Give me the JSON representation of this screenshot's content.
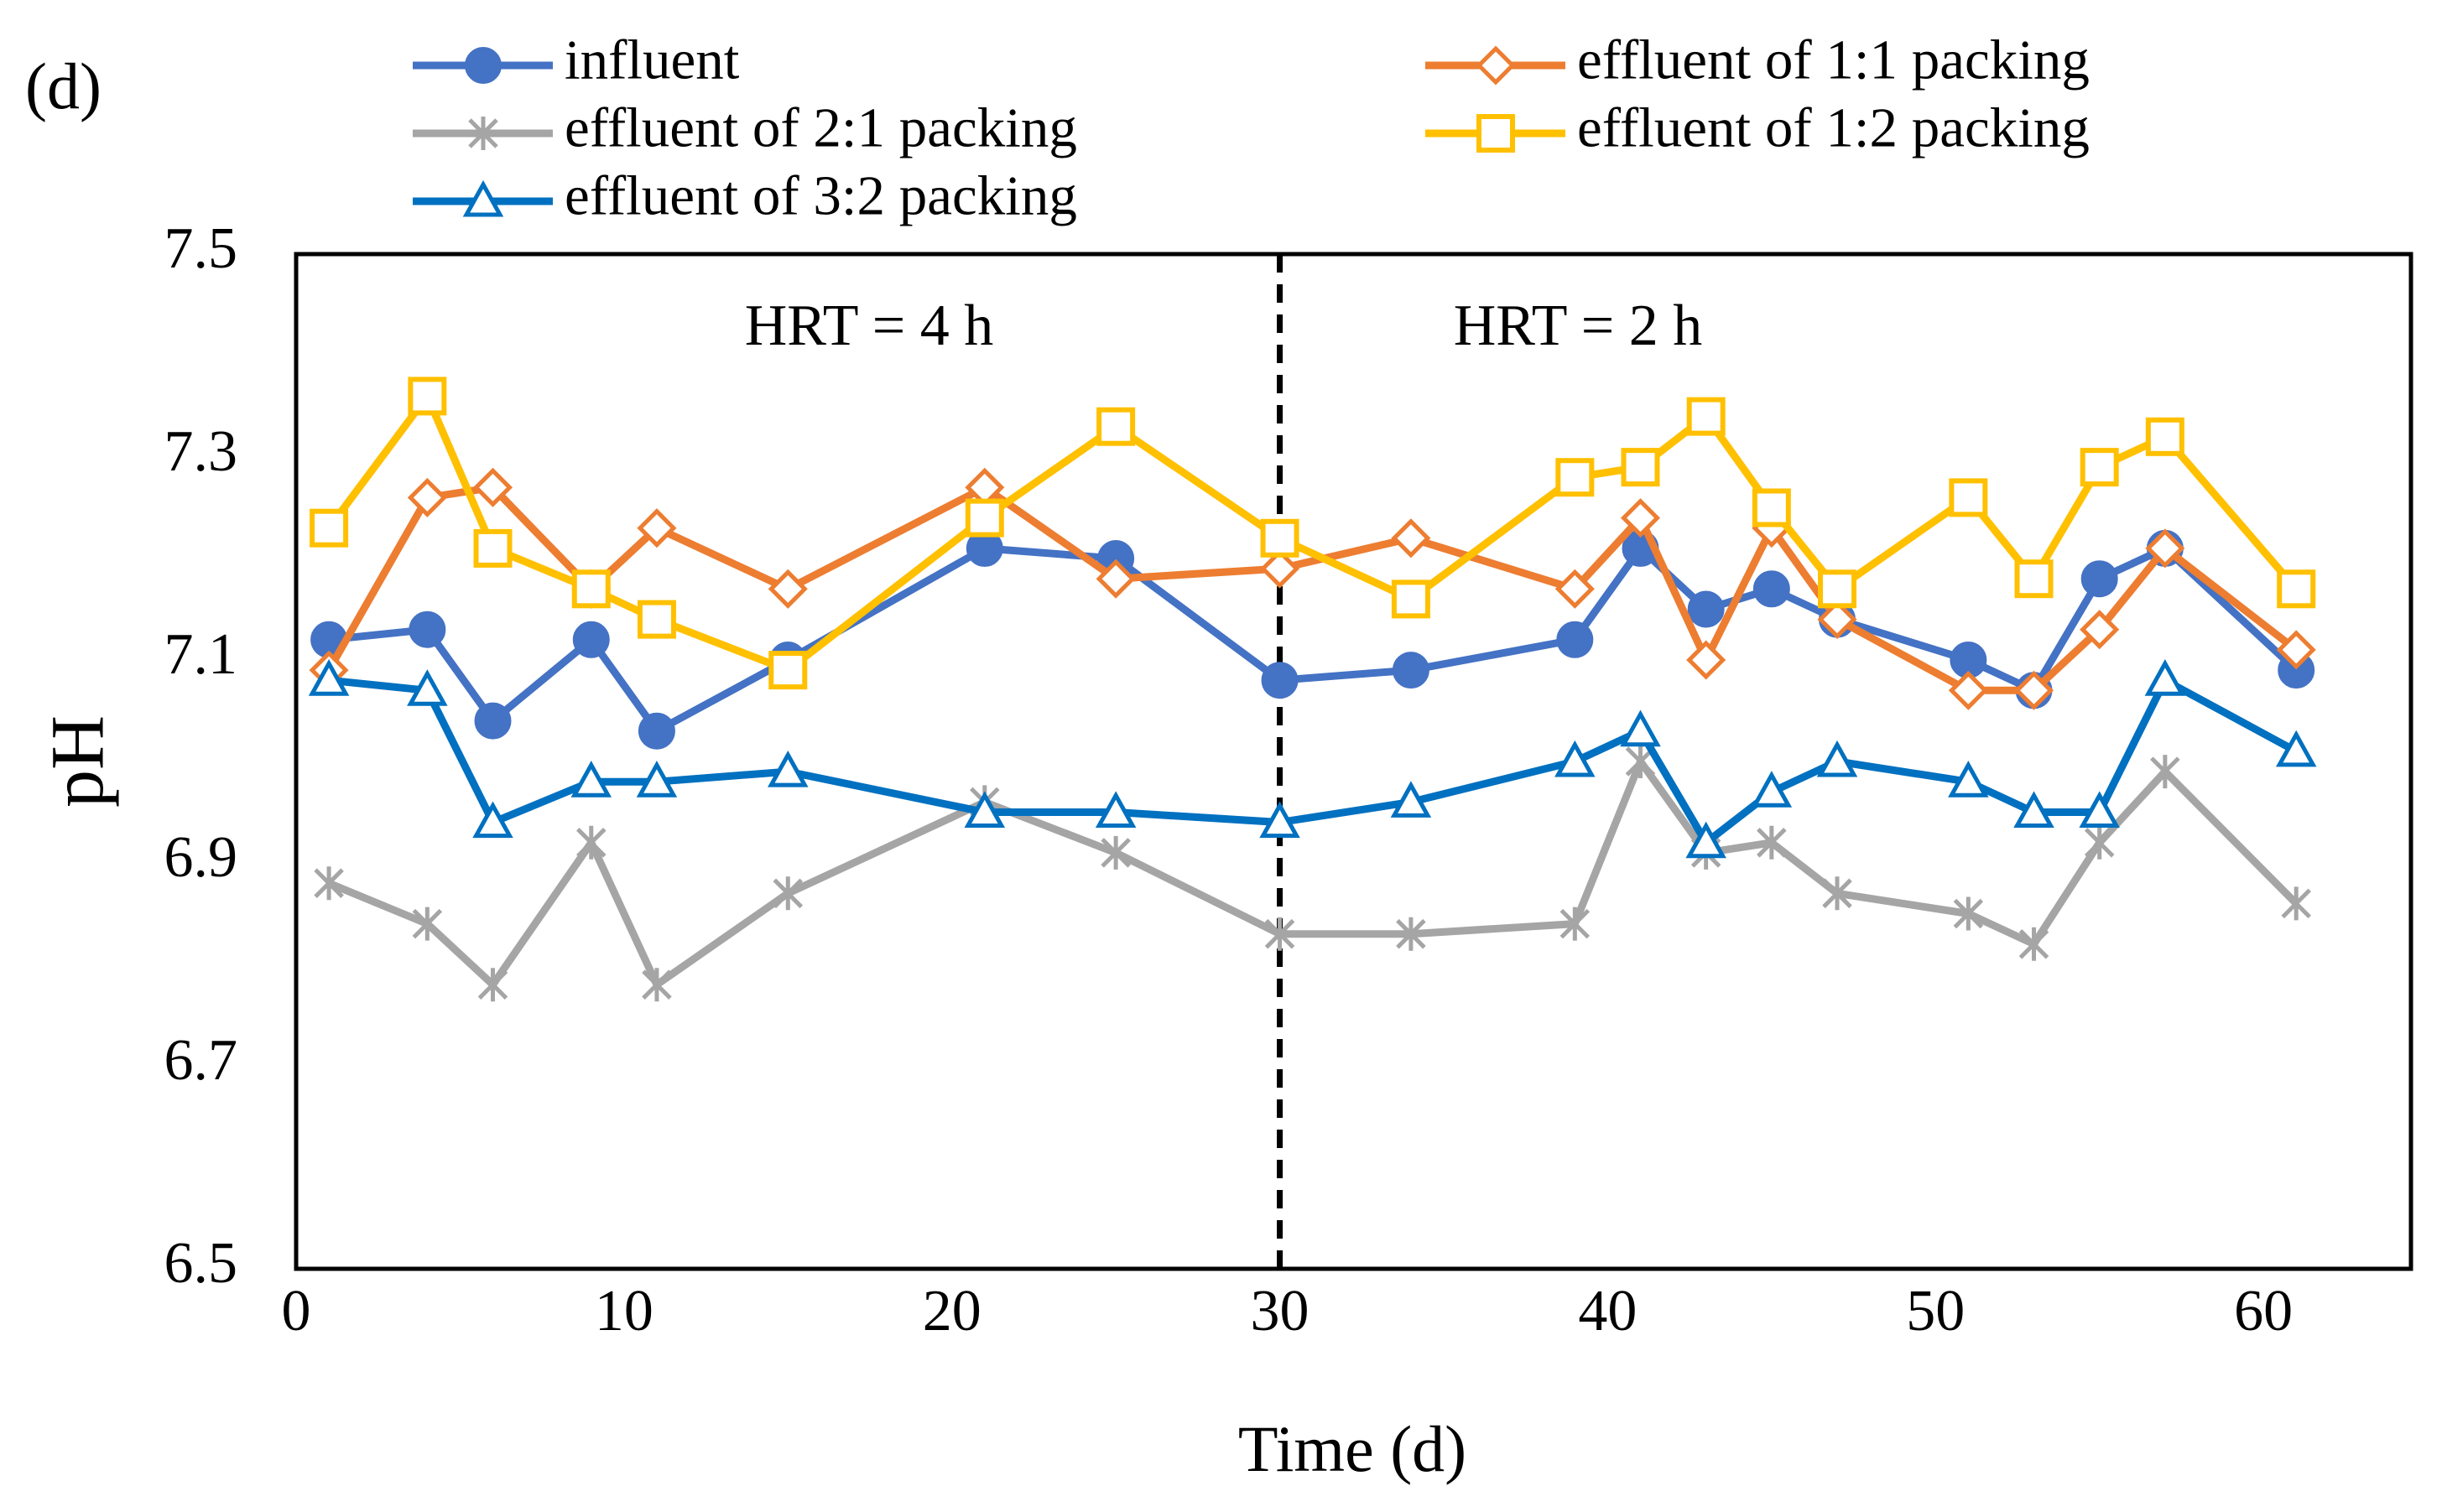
{
  "chart_data": {
    "type": "line",
    "panel_label": "(d)",
    "x_label": "Time (d)",
    "y_label": "pH",
    "annotations": [
      "HRT = 4 h",
      "HRT = 2 h"
    ],
    "vline": 30,
    "x": [
      1,
      4,
      6,
      9,
      11,
      15,
      21,
      25,
      30,
      34,
      39,
      41,
      43,
      45,
      47,
      51,
      53,
      55,
      57,
      61
    ],
    "series": [
      {
        "name": "influent",
        "color": "#4472c4",
        "marker": "circle",
        "values": [
          7.12,
          7.13,
          7.04,
          7.12,
          7.03,
          7.1,
          7.21,
          7.2,
          7.08,
          7.09,
          7.12,
          7.21,
          7.15,
          7.17,
          7.14,
          7.1,
          7.07,
          7.18,
          7.21,
          7.09
        ]
      },
      {
        "name": "effluent of 1:1 packing",
        "color": "#ed7d31",
        "marker": "diamond",
        "values": [
          7.09,
          7.26,
          7.27,
          7.17,
          7.23,
          7.17,
          7.27,
          7.18,
          7.19,
          7.22,
          7.17,
          7.24,
          7.1,
          7.23,
          7.14,
          7.07,
          7.07,
          7.13,
          7.21,
          7.11
        ]
      },
      {
        "name": "effluent of 2:1 packing",
        "color": "#a5a5a5",
        "marker": "star",
        "values": [
          6.88,
          6.84,
          6.78,
          6.92,
          6.78,
          6.87,
          6.96,
          6.91,
          6.83,
          6.83,
          6.84,
          7.0,
          6.91,
          6.92,
          6.87,
          6.85,
          6.82,
          6.92,
          6.99,
          6.86
        ]
      },
      {
        "name": "effluent of 1:2 packing",
        "color": "#ffc000",
        "marker": "square",
        "values": [
          7.23,
          7.36,
          7.21,
          7.17,
          7.14,
          7.09,
          7.24,
          7.33,
          7.22,
          7.16,
          7.28,
          7.29,
          7.34,
          7.25,
          7.17,
          7.26,
          7.18,
          7.29,
          7.32,
          7.17
        ]
      },
      {
        "name": "effluent of 3:2 packing",
        "color": "#0070c0",
        "marker": "triangle",
        "values": [
          7.08,
          7.07,
          6.94,
          6.98,
          6.98,
          6.99,
          6.95,
          6.95,
          6.94,
          6.96,
          7.0,
          7.03,
          6.92,
          6.97,
          7.0,
          6.98,
          6.95,
          6.95,
          7.08,
          7.01
        ]
      }
    ],
    "xlim": [
      0,
      64.5
    ],
    "xticks": [
      0,
      10,
      20,
      30,
      40,
      50,
      60
    ],
    "ylim": [
      6.5,
      7.5
    ],
    "yticks": [
      6.5,
      6.7,
      6.9,
      7.1,
      7.3,
      7.5
    ],
    "grid": false
  }
}
